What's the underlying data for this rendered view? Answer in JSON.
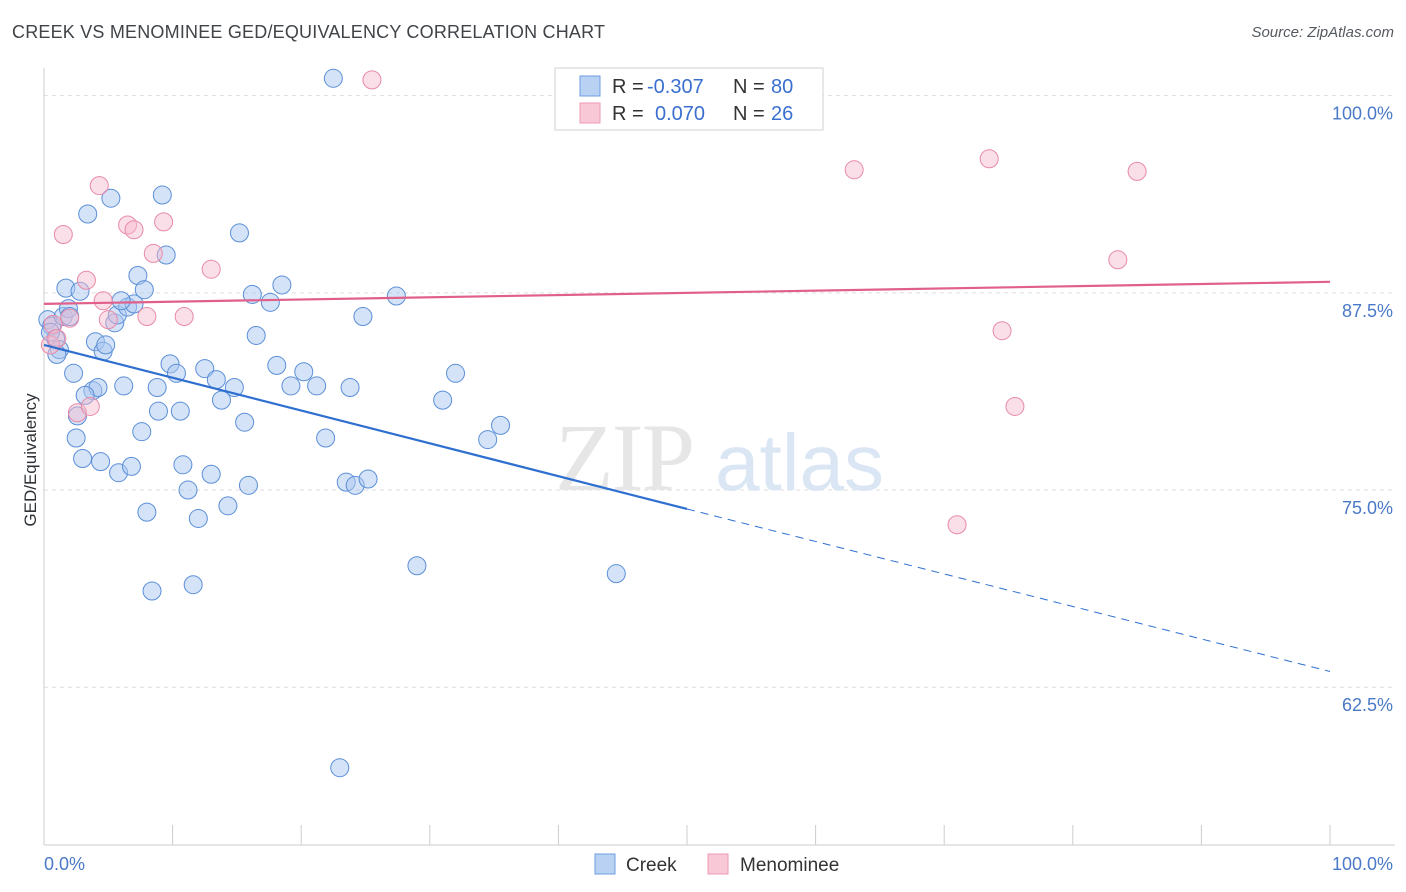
{
  "title": "CREEK VS MENOMINEE GED/EQUIVALENCY CORRELATION CHART",
  "source": "Source: ZipAtlas.com",
  "watermark": {
    "part1": "ZIP",
    "part2": "atlas"
  },
  "colors": {
    "creek_fill": "#a9c7f0",
    "creek_stroke": "#5b8fd8",
    "creek_line": "#2e6fd0",
    "menominee_fill": "#f7b9cc",
    "menominee_stroke": "#e88aa8",
    "menominee_line": "#e0608a",
    "tick_label": "#4a79c8",
    "grid": "#dddddd"
  },
  "legend": {
    "creek": {
      "r_label": "R =",
      "r_value": "-0.307",
      "n_label": "N =",
      "n_value": "80"
    },
    "menominee": {
      "r_label": "R =",
      "r_value": "0.070",
      "n_label": "N =",
      "n_value": "26"
    }
  },
  "chart_data": {
    "type": "scatter",
    "title": "CREEK VS MENOMINEE GED/EQUIVALENCY CORRELATION CHART",
    "xlabel": "",
    "ylabel": "GED/Equivalency",
    "xlim": [
      0,
      100
    ],
    "ylim": [
      52.5,
      101.5
    ],
    "x_tick_labels": [
      "0.0%",
      "100.0%"
    ],
    "y_ticks": [
      {
        "value": 100,
        "label": "100.0%"
      },
      {
        "value": 87.5,
        "label": "87.5%"
      },
      {
        "value": 75,
        "label": "75.0%"
      },
      {
        "value": 62.5,
        "label": "62.5%"
      }
    ],
    "grid": true,
    "legend_position": "top-center",
    "series": [
      {
        "name": "Creek",
        "points": [
          [
            0.3,
            85.8
          ],
          [
            0.6,
            85.4
          ],
          [
            0.9,
            84.6
          ],
          [
            1.2,
            83.9
          ],
          [
            1.5,
            86.0
          ],
          [
            1.7,
            87.8
          ],
          [
            1.9,
            86.5
          ],
          [
            2.3,
            82.4
          ],
          [
            2.5,
            78.3
          ],
          [
            2.6,
            79.7
          ],
          [
            3.0,
            77.0
          ],
          [
            2.8,
            87.6
          ],
          [
            3.4,
            92.5
          ],
          [
            3.8,
            81.3
          ],
          [
            4.0,
            84.4
          ],
          [
            4.2,
            81.5
          ],
          [
            4.4,
            76.8
          ],
          [
            4.6,
            83.8
          ],
          [
            5.2,
            93.5
          ],
          [
            5.5,
            85.6
          ],
          [
            5.7,
            86.1
          ],
          [
            5.8,
            76.1
          ],
          [
            6.2,
            81.6
          ],
          [
            6.5,
            86.6
          ],
          [
            6.8,
            76.5
          ],
          [
            7.0,
            86.8
          ],
          [
            7.3,
            88.6
          ],
          [
            7.6,
            78.7
          ],
          [
            7.8,
            87.7
          ],
          [
            8.0,
            73.6
          ],
          [
            8.4,
            68.6
          ],
          [
            8.8,
            81.5
          ],
          [
            8.9,
            80.0
          ],
          [
            9.2,
            93.7
          ],
          [
            9.5,
            89.9
          ],
          [
            9.8,
            83.0
          ],
          [
            10.3,
            82.4
          ],
          [
            10.6,
            80.0
          ],
          [
            10.8,
            76.6
          ],
          [
            11.2,
            75.0
          ],
          [
            11.6,
            69.0
          ],
          [
            12.5,
            82.7
          ],
          [
            13.0,
            76.0
          ],
          [
            13.4,
            82.0
          ],
          [
            13.8,
            80.7
          ],
          [
            14.3,
            74.0
          ],
          [
            14.8,
            81.5
          ],
          [
            15.2,
            91.3
          ],
          [
            15.6,
            79.3
          ],
          [
            15.9,
            75.3
          ],
          [
            16.2,
            87.4
          ],
          [
            16.5,
            84.8
          ],
          [
            17.6,
            86.9
          ],
          [
            18.1,
            82.9
          ],
          [
            18.5,
            88.0
          ],
          [
            19.2,
            81.6
          ],
          [
            20.2,
            82.5
          ],
          [
            21.2,
            81.6
          ],
          [
            21.9,
            78.3
          ],
          [
            22.5,
            101.1
          ],
          [
            23.0,
            57.4
          ],
          [
            23.5,
            75.5
          ],
          [
            23.8,
            81.5
          ],
          [
            24.2,
            75.3
          ],
          [
            24.8,
            86.0
          ],
          [
            25.2,
            75.7
          ],
          [
            27.4,
            87.3
          ],
          [
            29.0,
            70.2
          ],
          [
            31.0,
            80.7
          ],
          [
            32.0,
            82.4
          ],
          [
            34.5,
            78.2
          ],
          [
            35.5,
            79.1
          ],
          [
            44.5,
            69.7
          ],
          [
            2.0,
            86.0
          ],
          [
            4.8,
            84.2
          ],
          [
            6.0,
            87.0
          ],
          [
            12.0,
            73.2
          ],
          [
            3.2,
            81.0
          ],
          [
            1.0,
            83.6
          ],
          [
            0.5,
            85.0
          ]
        ]
      },
      {
        "name": "Menominee",
        "points": [
          [
            0.5,
            84.2
          ],
          [
            0.7,
            85.5
          ],
          [
            1.0,
            84.6
          ],
          [
            1.5,
            91.2
          ],
          [
            2.0,
            85.9
          ],
          [
            2.6,
            79.9
          ],
          [
            3.3,
            88.3
          ],
          [
            3.6,
            80.3
          ],
          [
            4.3,
            94.3
          ],
          [
            4.6,
            87.0
          ],
          [
            5.0,
            85.8
          ],
          [
            6.5,
            91.8
          ],
          [
            7.0,
            91.5
          ],
          [
            8.0,
            86.0
          ],
          [
            8.5,
            90.0
          ],
          [
            9.3,
            92.0
          ],
          [
            10.9,
            86.0
          ],
          [
            13.0,
            89.0
          ],
          [
            25.5,
            101.0
          ],
          [
            63.0,
            95.3
          ],
          [
            73.5,
            96.0
          ],
          [
            74.5,
            85.1
          ],
          [
            75.5,
            80.3
          ],
          [
            83.5,
            89.6
          ],
          [
            85.0,
            95.2
          ],
          [
            71.0,
            72.8
          ]
        ]
      }
    ],
    "trend_lines": [
      {
        "series": "Creek",
        "solid": [
          [
            0,
            84.2
          ],
          [
            50,
            73.8
          ]
        ],
        "dashed": [
          [
            50,
            73.8
          ],
          [
            100,
            63.5
          ]
        ]
      },
      {
        "series": "Menominee",
        "solid": [
          [
            0,
            86.8
          ],
          [
            100,
            88.2
          ]
        ]
      }
    ]
  },
  "bottom_legend": [
    "Creek",
    "Menominee"
  ]
}
